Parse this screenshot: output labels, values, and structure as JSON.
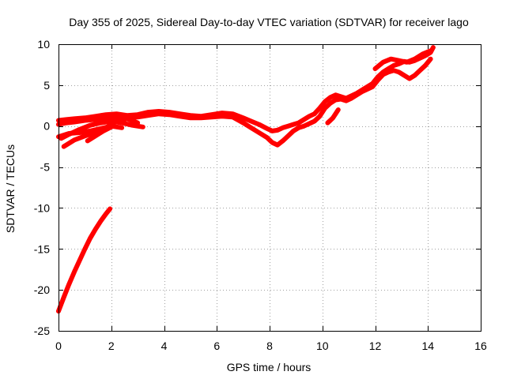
{
  "chart_data": {
    "type": "line",
    "title": "Day 355 of 2025, Sidereal Day-to-day VTEC variation (SDTVAR) for receiver lago",
    "xlabel": "GPS time / hours",
    "ylabel": "SDTVAR / TECUs",
    "xlim": [
      0,
      16
    ],
    "ylim": [
      -25,
      10
    ],
    "xticks": [
      "0",
      "2",
      "4",
      "6",
      "8",
      "10",
      "12",
      "14",
      "16"
    ],
    "yticks": [
      "10",
      "5",
      "0",
      "-5",
      "-10",
      "-15",
      "-20",
      "-25"
    ],
    "grid": true,
    "color": "#ff0000",
    "series": [
      {
        "name": "track-main",
        "x": [
          0.0,
          0.3,
          0.6,
          1.0,
          1.4,
          1.8,
          2.2,
          2.6,
          3.0,
          3.4,
          3.8,
          4.2,
          4.6,
          5.0,
          5.4,
          5.8,
          6.2,
          6.6,
          7.0,
          7.3,
          7.6,
          7.9,
          8.1,
          8.3,
          8.5,
          8.7,
          8.9,
          9.1,
          9.3,
          9.5,
          9.7,
          9.9,
          10.1,
          10.3,
          10.5,
          10.7,
          10.9,
          11.1,
          11.3,
          11.5,
          11.7,
          11.9,
          12.1,
          12.3,
          12.5,
          12.7,
          12.9,
          13.1,
          13.3,
          13.5,
          13.7,
          13.9,
          14.1,
          14.2
        ],
        "y": [
          0.7,
          0.8,
          0.9,
          1.0,
          1.2,
          1.4,
          1.5,
          1.3,
          1.4,
          1.7,
          1.8,
          1.7,
          1.5,
          1.3,
          1.2,
          1.4,
          1.6,
          1.5,
          1.0,
          0.6,
          0.2,
          -0.3,
          -0.6,
          -0.5,
          -0.2,
          0.0,
          0.2,
          0.4,
          0.8,
          1.2,
          1.5,
          2.2,
          3.0,
          3.5,
          3.8,
          3.6,
          3.4,
          3.7,
          4.0,
          4.4,
          4.8,
          5.2,
          6.0,
          6.6,
          7.0,
          7.4,
          7.6,
          7.9,
          7.8,
          8.0,
          8.3,
          8.6,
          9.0,
          9.6
        ]
      },
      {
        "name": "track-lower",
        "x": [
          0.0,
          0.3,
          0.6,
          1.0,
          1.4,
          1.8,
          2.2,
          2.6,
          3.0,
          3.4,
          3.8,
          4.2,
          4.6,
          5.0,
          5.4,
          5.8,
          6.2,
          6.6,
          7.0,
          7.3,
          7.6,
          7.9,
          8.1,
          8.3,
          8.5,
          8.7,
          8.9,
          9.1,
          9.3,
          9.5,
          9.7,
          9.9,
          10.1,
          10.3,
          10.5,
          10.7,
          10.9,
          11.1,
          11.3,
          11.5,
          11.7,
          11.9,
          12.1,
          12.3,
          12.5,
          12.7,
          12.9,
          13.1,
          13.3,
          13.5,
          13.7,
          13.9,
          14.1
        ],
        "y": [
          0.2,
          0.4,
          0.5,
          0.7,
          0.8,
          1.0,
          1.1,
          1.0,
          1.1,
          1.3,
          1.5,
          1.4,
          1.2,
          1.0,
          1.0,
          1.1,
          1.2,
          1.1,
          0.4,
          -0.2,
          -0.8,
          -1.4,
          -2.0,
          -2.3,
          -1.8,
          -1.2,
          -0.6,
          -0.2,
          0.0,
          0.3,
          0.6,
          1.2,
          2.2,
          2.8,
          3.2,
          3.3,
          3.1,
          3.4,
          3.8,
          4.2,
          4.5,
          4.8,
          5.6,
          6.3,
          6.6,
          6.8,
          6.6,
          6.2,
          5.8,
          6.2,
          6.8,
          7.4,
          8.2
        ]
      },
      {
        "name": "track-upper",
        "x": [
          12.0,
          12.3,
          12.6,
          12.9,
          13.2,
          13.5,
          13.8,
          14.1
        ],
        "y": [
          7.0,
          7.8,
          8.2,
          8.0,
          7.8,
          8.2,
          8.8,
          9.2
        ]
      },
      {
        "name": "track-dip",
        "x": [
          10.2,
          10.3,
          10.4,
          10.5,
          10.6
        ],
        "y": [
          0.4,
          0.7,
          1.0,
          1.5,
          2.0
        ]
      },
      {
        "name": "track-left-upper",
        "x": [
          0.1,
          0.4,
          0.8,
          1.2,
          1.6,
          2.0,
          2.4,
          2.8,
          3.2
        ],
        "y": [
          -1.5,
          -1.0,
          -0.4,
          0.1,
          0.4,
          0.6,
          0.4,
          0.1,
          -0.1
        ]
      },
      {
        "name": "track-left-mid",
        "x": [
          0.0,
          0.4,
          0.8,
          1.2,
          1.6,
          2.0,
          2.4
        ],
        "y": [
          -1.3,
          -0.9,
          -0.8,
          -0.6,
          -0.3,
          0.0,
          -0.2
        ]
      },
      {
        "name": "track-left-low",
        "x": [
          0.2,
          0.6,
          1.0,
          1.4,
          1.8,
          2.2,
          2.6,
          3.0
        ],
        "y": [
          -2.5,
          -1.7,
          -1.2,
          -0.8,
          -0.2,
          0.6,
          0.9,
          0.4
        ]
      },
      {
        "name": "track-left-short",
        "x": [
          1.1,
          1.4,
          1.7,
          2.0
        ],
        "y": [
          -1.8,
          -1.2,
          -0.6,
          -0.1
        ]
      },
      {
        "name": "track-steep",
        "x": [
          0.0,
          0.2,
          0.4,
          0.6,
          0.8,
          1.0,
          1.2,
          1.4,
          1.6,
          1.8,
          1.95
        ],
        "y": [
          -22.6,
          -20.9,
          -19.3,
          -17.8,
          -16.4,
          -15.0,
          -13.7,
          -12.6,
          -11.6,
          -10.7,
          -10.1
        ]
      }
    ]
  }
}
